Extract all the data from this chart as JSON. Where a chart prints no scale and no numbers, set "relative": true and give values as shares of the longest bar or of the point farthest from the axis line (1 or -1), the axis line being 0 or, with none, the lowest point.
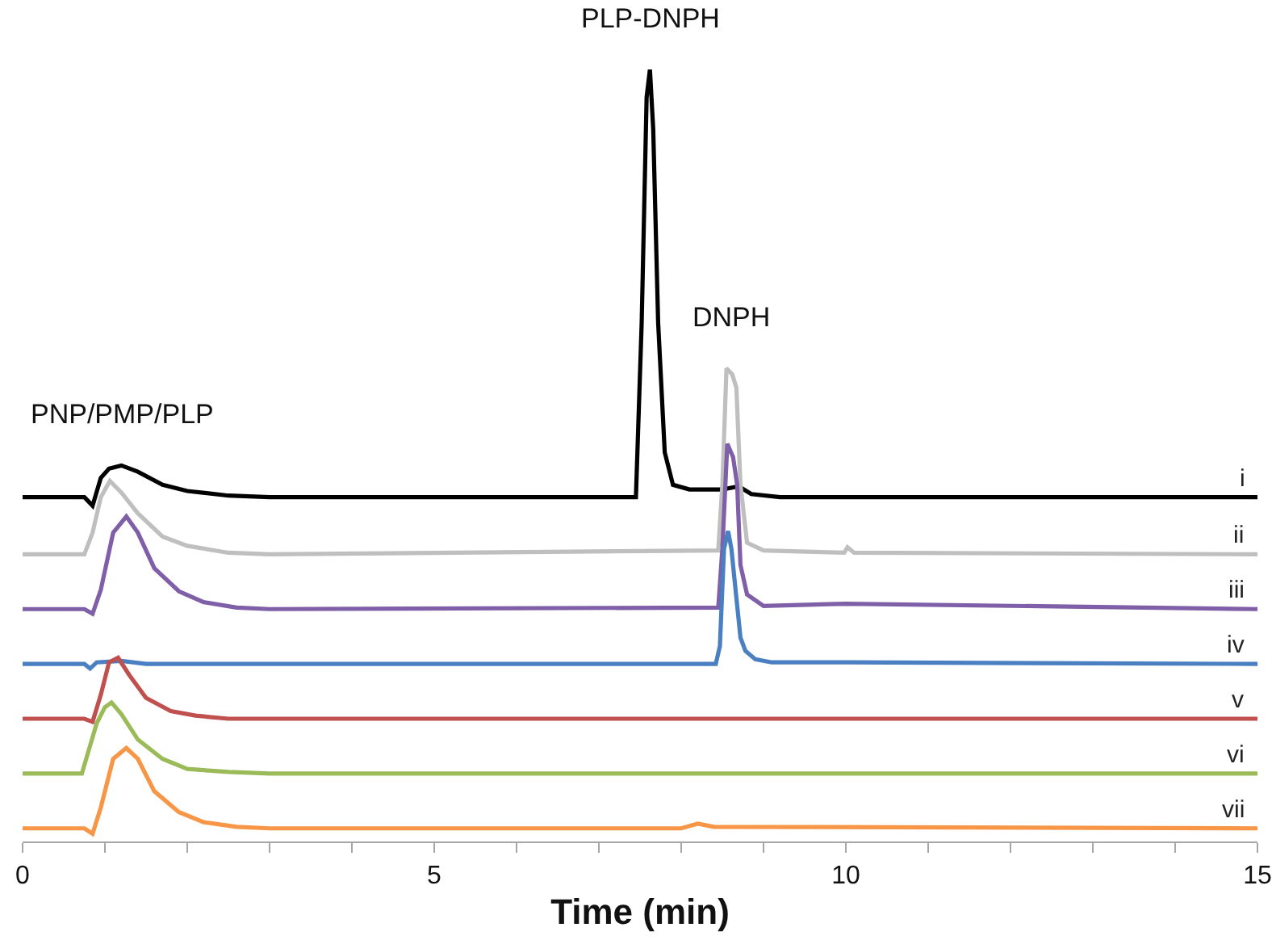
{
  "chart_data": {
    "type": "line",
    "relative": true,
    "xlabel": "Time (min)",
    "xlim": [
      0,
      15
    ],
    "xticks": [
      0,
      {
        "value": 1,
        "label": null
      },
      {
        "value": 2,
        "label": null
      },
      {
        "value": 3,
        "label": null
      },
      {
        "value": 4,
        "label": null
      },
      5,
      {
        "value": 6,
        "label": null
      },
      {
        "value": 7,
        "label": null
      },
      {
        "value": 8,
        "label": null
      },
      {
        "value": 9,
        "label": null
      },
      10,
      {
        "value": 11,
        "label": null
      },
      {
        "value": 12,
        "label": null
      },
      {
        "value": 13,
        "label": null
      },
      {
        "value": 14,
        "label": null
      },
      15
    ],
    "grid": false,
    "legend": false,
    "marker": "none",
    "line_style": "solid",
    "annotations": [
      {
        "text": "PNP/PMP/PLP",
        "x": 1.2,
        "y": 0.487
      },
      {
        "text": "PLP-DNPH",
        "x": 7.62,
        "y": 1.0
      },
      {
        "text": "DNPH",
        "x": 8.6,
        "y": 0.613
      }
    ],
    "series": [
      {
        "name": "i",
        "color": "#000000",
        "x": [
          0,
          0.75,
          0.85,
          0.95,
          1.05,
          1.2,
          1.4,
          1.7,
          2.0,
          2.5,
          3,
          7.45,
          7.52,
          7.58,
          7.62,
          7.66,
          7.72,
          7.8,
          7.9,
          8.1,
          8.5,
          8.7,
          8.85,
          9.2,
          15
        ],
        "values": [
          0.446,
          0.446,
          0.435,
          0.471,
          0.483,
          0.487,
          0.479,
          0.462,
          0.454,
          0.448,
          0.446,
          0.446,
          0.672,
          0.964,
          1.0,
          0.923,
          0.672,
          0.504,
          0.462,
          0.456,
          0.456,
          0.46,
          0.45,
          0.446,
          0.446
        ]
      },
      {
        "name": "ii",
        "color": "#bfbfbf",
        "x": [
          0,
          0.75,
          0.85,
          0.95,
          1.06,
          1.2,
          1.4,
          1.7,
          2.0,
          2.5,
          3,
          8.45,
          8.5,
          8.55,
          8.62,
          8.67,
          8.72,
          8.8,
          9.0,
          9.98,
          10.02,
          10.1,
          15
        ],
        "values": [
          0.372,
          0.372,
          0.4,
          0.446,
          0.467,
          0.452,
          0.425,
          0.395,
          0.383,
          0.374,
          0.372,
          0.377,
          0.462,
          0.613,
          0.605,
          0.588,
          0.462,
          0.387,
          0.377,
          0.374,
          0.381,
          0.374,
          0.372
        ]
      },
      {
        "name": "iii",
        "color": "#7f5fa8",
        "x": [
          0,
          0.75,
          0.85,
          0.95,
          1.1,
          1.26,
          1.4,
          1.6,
          1.9,
          2.2,
          2.6,
          3,
          8.45,
          8.5,
          8.56,
          8.63,
          8.68,
          8.72,
          8.8,
          9.0,
          10,
          15
        ],
        "values": [
          0.301,
          0.301,
          0.295,
          0.326,
          0.4,
          0.421,
          0.4,
          0.354,
          0.324,
          0.31,
          0.303,
          0.301,
          0.303,
          0.379,
          0.515,
          0.498,
          0.462,
          0.358,
          0.32,
          0.305,
          0.308,
          0.301
        ]
      },
      {
        "name": "iv",
        "color": "#4a7fc1",
        "x": [
          0,
          0.75,
          0.82,
          0.9,
          1.2,
          1.5,
          8.42,
          8.47,
          8.52,
          8.57,
          8.61,
          8.67,
          8.72,
          8.78,
          8.9,
          9.1,
          10,
          15
        ],
        "values": [
          0.23,
          0.23,
          0.224,
          0.232,
          0.234,
          0.23,
          0.23,
          0.253,
          0.379,
          0.402,
          0.379,
          0.316,
          0.264,
          0.247,
          0.236,
          0.232,
          0.232,
          0.23
        ]
      },
      {
        "name": "v",
        "color": "#c0504d",
        "x": [
          0,
          0.75,
          0.85,
          0.95,
          1.05,
          1.16,
          1.3,
          1.5,
          1.8,
          2.1,
          2.5,
          3,
          15
        ],
        "values": [
          0.159,
          0.159,
          0.155,
          0.19,
          0.232,
          0.238,
          0.215,
          0.186,
          0.169,
          0.163,
          0.159,
          0.159,
          0.159
        ]
      },
      {
        "name": "vi",
        "color": "#9bbb59",
        "x": [
          0,
          0.72,
          0.8,
          0.9,
          1.0,
          1.08,
          1.2,
          1.4,
          1.7,
          2.0,
          2.5,
          3,
          15
        ],
        "values": [
          0.088,
          0.088,
          0.117,
          0.153,
          0.174,
          0.18,
          0.165,
          0.132,
          0.107,
          0.094,
          0.09,
          0.088,
          0.088
        ]
      },
      {
        "name": "vii",
        "color": "#f79646",
        "x": [
          0,
          0.75,
          0.85,
          0.95,
          1.1,
          1.26,
          1.4,
          1.6,
          1.9,
          2.2,
          2.6,
          3,
          8.0,
          8.2,
          8.4,
          15
        ],
        "values": [
          0.017,
          0.017,
          0.01,
          0.044,
          0.107,
          0.121,
          0.107,
          0.065,
          0.038,
          0.025,
          0.019,
          0.017,
          0.017,
          0.023,
          0.019,
          0.017
        ]
      }
    ]
  }
}
